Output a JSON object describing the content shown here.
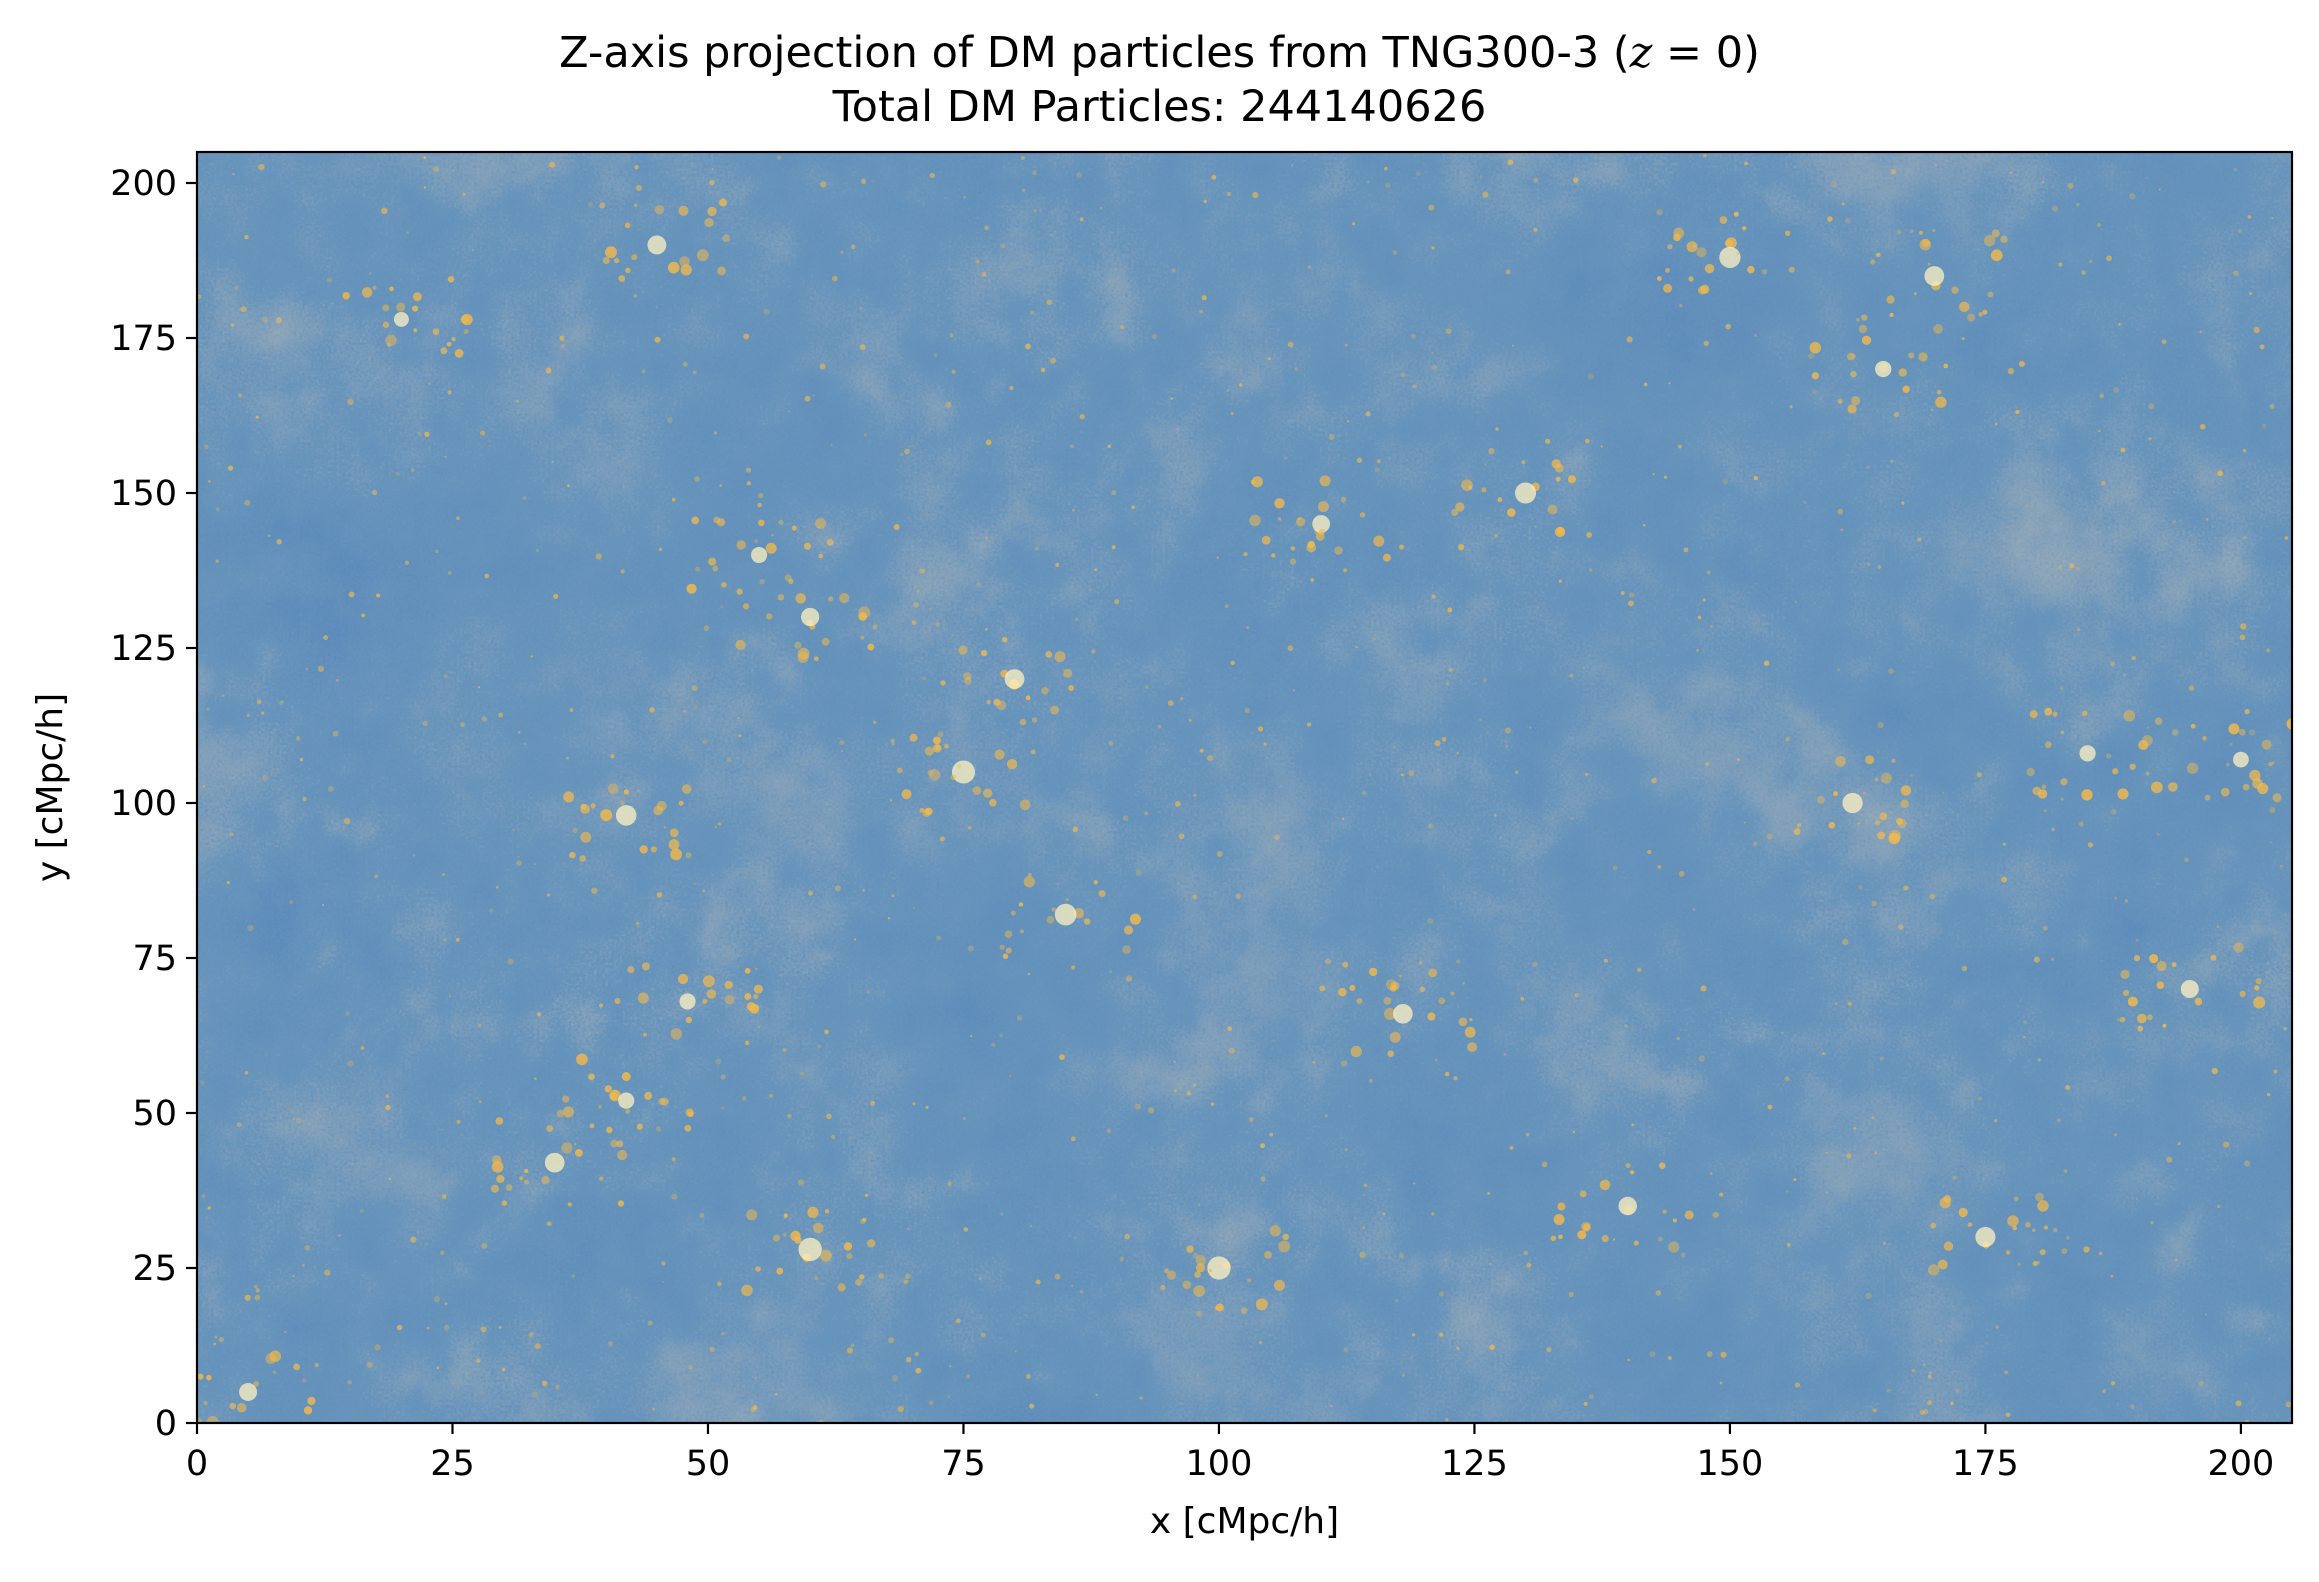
{
  "chart_data": {
    "type": "heatmap",
    "title": {
      "prefix": "Z-axis projection of DM particles from TNG300-3 (",
      "math_var": "z",
      "math_rest": " = 0)"
    },
    "subtitle": "Total DM Particles: 244140626",
    "xlabel": "x [cMpc/h]",
    "ylabel": "y [cMpc/h]",
    "xlim": [
      0,
      205
    ],
    "ylim": [
      0,
      205
    ],
    "xticks": [
      0,
      25,
      50,
      75,
      100,
      125,
      150,
      175,
      200
    ],
    "yticks": [
      0,
      25,
      50,
      75,
      100,
      125,
      150,
      175,
      200
    ],
    "grid": false,
    "legend": "none",
    "colormap": {
      "low": "#1a3f7c",
      "mid": "#3e5f86",
      "high": "#f2b94c",
      "peak": "#fff1c2"
    },
    "description_values": {
      "box_size": 205,
      "units": "cMpc/h"
    }
  }
}
